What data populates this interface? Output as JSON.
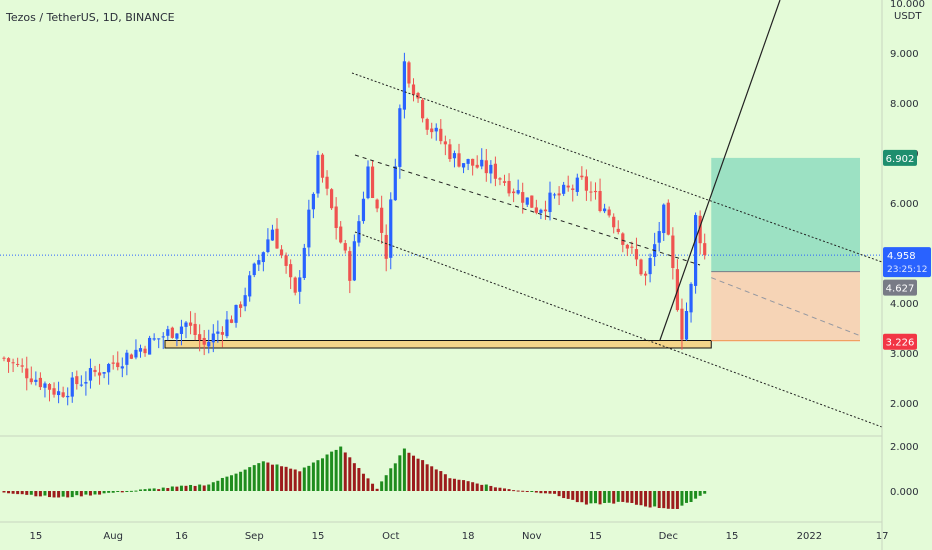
{
  "title": "Tezos / TetherUS, 1D, BINANCE",
  "quote_currency": "USDT",
  "colors": {
    "background": "#e4fbd8",
    "up": "#2962ff",
    "down": "#ef5350",
    "osc_up": "#1e8c1e",
    "osc_down": "#9c1c1c",
    "target_zone": "#8fdcc0",
    "stop_zone": "#f7cfb2",
    "support_zone": "#f3d58a",
    "label_target": "#1e8e6e",
    "label_last": "#2962ff",
    "label_entry": "#787b86",
    "label_stop": "#f23645"
  },
  "price_axis": {
    "ticks": [
      "10.000",
      "9.000",
      "8.000",
      "7.000",
      "6.000",
      "5.000",
      "4.000",
      "3.000",
      "2.000"
    ],
    "labels": {
      "target": "6.902",
      "last": "4.958",
      "countdown": "23:25:12",
      "entry": "4.627",
      "stop": "3.226"
    }
  },
  "osc_axis": {
    "ticks": [
      "2.000",
      "0.000"
    ]
  },
  "time_axis": {
    "ticks": [
      "15",
      "Aug",
      "16",
      "Sep",
      "15",
      "Oct",
      "18",
      "Nov",
      "15",
      "Dec",
      "15",
      "2022",
      "17"
    ]
  },
  "chart_data": [
    {
      "type": "candlestick",
      "title": "Tezos / TetherUS, 1D, BINANCE",
      "x_range": [
        "2021-07-08",
        "2022-01-22"
      ],
      "y_range": [
        1.3,
        10.0
      ],
      "ohlc_anchors": [
        {
          "date": "2021-07-08",
          "close": 2.9
        },
        {
          "date": "2021-07-20",
          "close": 2.2
        },
        {
          "date": "2021-08-05",
          "close": 3.0
        },
        {
          "date": "2021-08-17",
          "close": 3.6
        },
        {
          "date": "2021-08-21",
          "close": 3.15
        },
        {
          "date": "2021-08-28",
          "close": 3.8
        },
        {
          "date": "2021-09-05",
          "close": 5.5
        },
        {
          "date": "2021-09-10",
          "close": 4.1
        },
        {
          "date": "2021-09-15",
          "close": 6.8
        },
        {
          "date": "2021-09-22",
          "close": 4.6
        },
        {
          "date": "2021-09-26",
          "close": 6.7
        },
        {
          "date": "2021-09-30",
          "close": 5.0
        },
        {
          "date": "2021-10-04",
          "close": 8.8
        },
        {
          "date": "2021-10-09",
          "close": 7.6
        },
        {
          "date": "2021-10-15",
          "close": 6.9
        },
        {
          "date": "2021-10-24",
          "close": 6.6
        },
        {
          "date": "2021-11-02",
          "close": 5.9
        },
        {
          "date": "2021-11-12",
          "close": 6.4
        },
        {
          "date": "2021-11-18",
          "close": 5.8
        },
        {
          "date": "2021-11-26",
          "close": 4.5
        },
        {
          "date": "2021-11-30",
          "close": 5.8
        },
        {
          "date": "2021-12-04",
          "close": 3.4
        },
        {
          "date": "2021-12-06",
          "close": 4.3
        },
        {
          "date": "2021-12-07",
          "close": 5.7
        },
        {
          "date": "2021-12-09",
          "close": 4.958
        }
      ],
      "last_price": 4.958,
      "trade_setup": {
        "entry": 4.627,
        "target": 6.902,
        "stop": 3.226
      },
      "support_zone": [
        3.1,
        3.25
      ]
    },
    {
      "type": "histogram",
      "y_range": [
        -1.0,
        2.7
      ],
      "anchors": [
        {
          "date": "2021-07-08",
          "value": -0.05
        },
        {
          "date": "2021-07-20",
          "value": -0.3
        },
        {
          "date": "2021-08-10",
          "value": 0.1
        },
        {
          "date": "2021-08-22",
          "value": 0.3
        },
        {
          "date": "2021-09-03",
          "value": 1.3
        },
        {
          "date": "2021-09-11",
          "value": 0.9
        },
        {
          "date": "2021-09-20",
          "value": 1.95
        },
        {
          "date": "2021-09-28",
          "value": 0.1
        },
        {
          "date": "2021-10-04",
          "value": 1.85
        },
        {
          "date": "2021-10-14",
          "value": 0.6
        },
        {
          "date": "2021-10-26",
          "value": 0.1
        },
        {
          "date": "2021-11-05",
          "value": -0.1
        },
        {
          "date": "2021-11-13",
          "value": -0.6
        },
        {
          "date": "2021-11-21",
          "value": -0.5
        },
        {
          "date": "2021-11-27",
          "value": -0.7
        },
        {
          "date": "2021-12-03",
          "value": -0.8
        },
        {
          "date": "2021-12-09",
          "value": -0.1
        }
      ]
    }
  ]
}
